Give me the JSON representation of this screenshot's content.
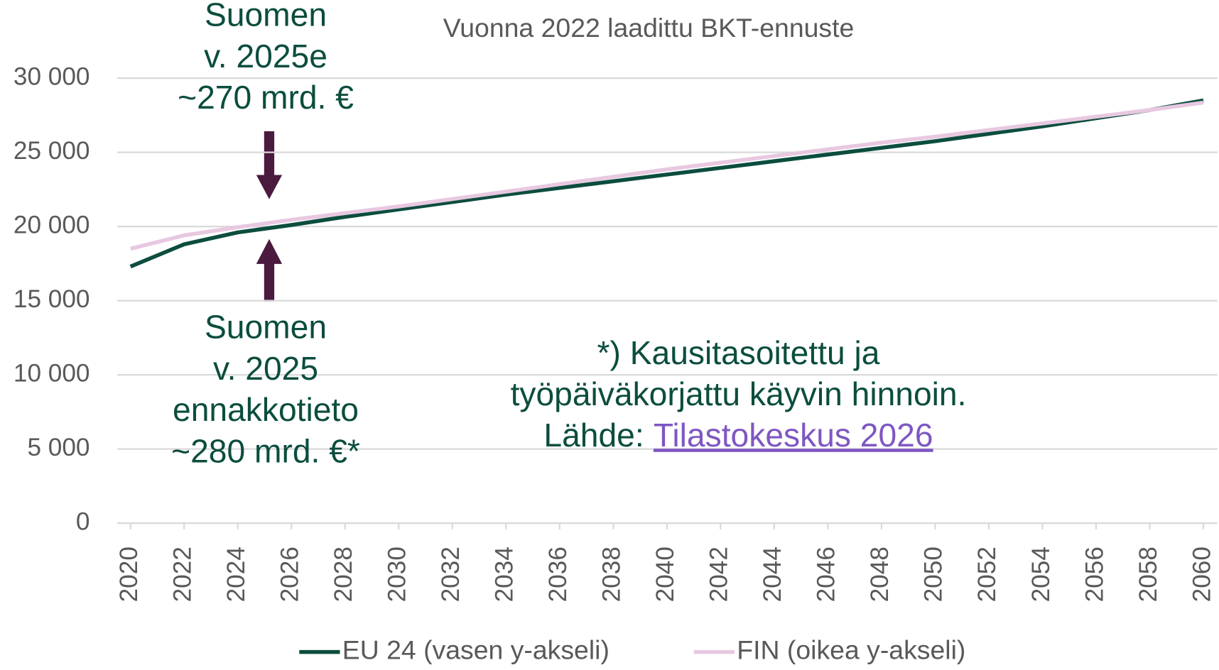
{
  "chart_data": {
    "type": "line",
    "title": "Vuonna 2022 laadittu BKT-ennuste",
    "x": [
      2020,
      2022,
      2024,
      2026,
      2028,
      2030,
      2032,
      2034,
      2036,
      2038,
      2040,
      2042,
      2044,
      2046,
      2048,
      2050,
      2052,
      2054,
      2056,
      2058,
      2060
    ],
    "xlim": [
      2020,
      2060
    ],
    "xticks": [
      2020,
      2022,
      2024,
      2026,
      2028,
      2030,
      2032,
      2034,
      2036,
      2038,
      2040,
      2042,
      2044,
      2046,
      2048,
      2050,
      2052,
      2054,
      2056,
      2058,
      2060
    ],
    "ylim": [
      0,
      30000
    ],
    "yticks": [
      0,
      {
        "value": 5000,
        "label": "5 000"
      },
      {
        "value": 10000,
        "label": "10 000"
      },
      {
        "value": 15000,
        "label": "15 000"
      },
      {
        "value": 20000,
        "label": "20 000"
      },
      {
        "value": 25000,
        "label": "25 000"
      },
      {
        "value": 30000,
        "label": "30 000"
      }
    ],
    "grid": true,
    "legend": "bottom",
    "series": [
      {
        "name": "EU 24 (vasen y-akseli)",
        "color": "#0b4d3e",
        "values": [
          17300,
          18800,
          19600,
          20100,
          20650,
          21150,
          21650,
          22150,
          22600,
          23050,
          23500,
          23950,
          24400,
          24850,
          25300,
          25750,
          26250,
          26750,
          27300,
          27850,
          28500
        ]
      },
      {
        "name": "FIN (oikea y-akseli)",
        "color": "#e8c8e0",
        "values": [
          18500,
          19400,
          19950,
          20450,
          20900,
          21350,
          21850,
          22350,
          22850,
          23350,
          23850,
          24300,
          24750,
          25200,
          25650,
          26050,
          26500,
          26950,
          27400,
          27850,
          28350
        ]
      }
    ],
    "annotations": {
      "estimate": [
        "Suomen",
        "v. 2025e",
        "~270 mrd. €"
      ],
      "flash": [
        "Suomen",
        "v. 2025",
        "ennakkotieto",
        "~280 mrd. €*"
      ],
      "footnote": [
        "*) Kausitasoitettu ja",
        "työpäiväkorjattu käyvin hinnoin."
      ],
      "source_label": "Lähde:",
      "source_link": "Tilastokeskus 2026"
    }
  }
}
